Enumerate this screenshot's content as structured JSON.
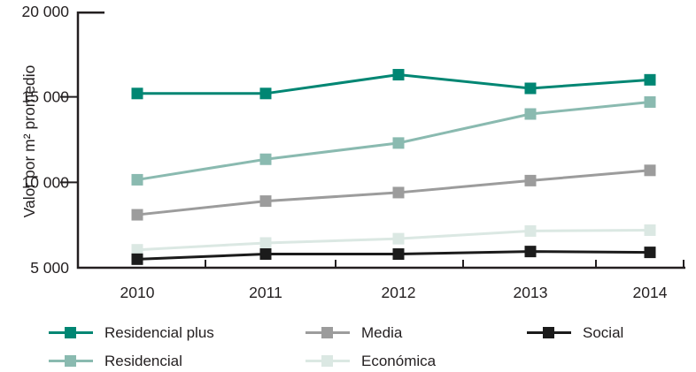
{
  "chart_data": {
    "type": "line",
    "title": "",
    "xlabel": "",
    "ylabel": "Valor por m² promedio",
    "categories": [
      "2010",
      "2011",
      "2012",
      "2013",
      "2014"
    ],
    "series": [
      {
        "name": "Residencial plus",
        "color": "#008673",
        "values": [
          15200,
          15200,
          16300,
          15500,
          16000
        ]
      },
      {
        "name": "Residencial",
        "color": "#8abab0",
        "values": [
          10150,
          11350,
          12300,
          14000,
          14700
        ]
      },
      {
        "name": "Media",
        "color": "#9c9c9c",
        "values": [
          8100,
          8900,
          9400,
          10100,
          10700
        ]
      },
      {
        "name": "Económica",
        "color": "#dbe8e3",
        "values": [
          6050,
          6450,
          6700,
          7150,
          7200
        ]
      },
      {
        "name": "Social",
        "color": "#1b1b1b",
        "values": [
          5500,
          5800,
          5800,
          5950,
          5900
        ]
      }
    ],
    "ylim": [
      5000,
      20000
    ],
    "yticks": [
      5000,
      10000,
      15000,
      20000
    ],
    "ytick_labels": [
      "5 000",
      "10 000",
      "15 000",
      "20 000"
    ],
    "grid": false,
    "marker": "square",
    "legend_position": "bottom",
    "legend_rows": [
      [
        "Residencial plus",
        "Media",
        "Social"
      ],
      [
        "Residencial",
        "Económica"
      ]
    ]
  },
  "colors": {
    "axis": "#231f20",
    "text": "#231f20",
    "background": "#ffffff"
  }
}
